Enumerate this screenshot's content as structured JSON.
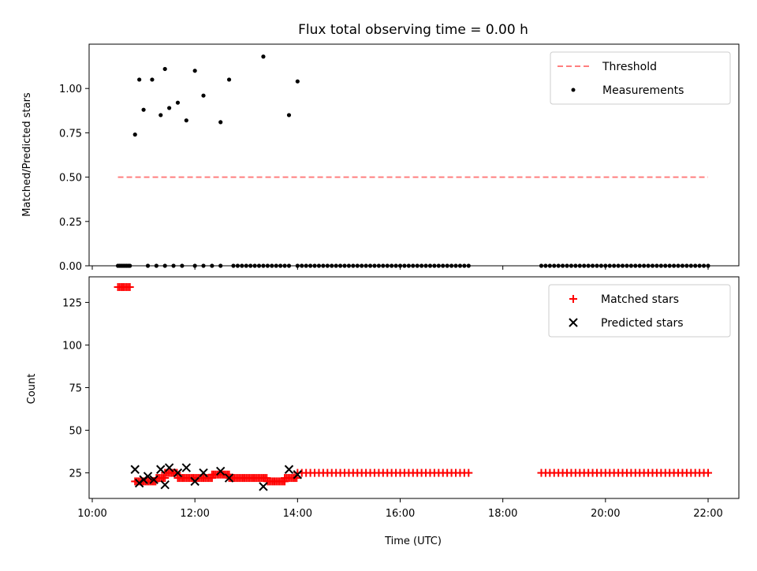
{
  "chart_data": [
    {
      "type": "scatter",
      "title": "Flux total observing time = 0.00 h",
      "xlabel": "",
      "ylabel": "Matched/Predicted stars",
      "xlim": [
        "10:00",
        "22:00"
      ],
      "ylim": [
        0,
        1.25
      ],
      "yticks": [
        "0.00",
        "0.25",
        "0.50",
        "0.75",
        "1.00"
      ],
      "grid": false,
      "legend_position": "top-right",
      "threshold": {
        "name": "Threshold",
        "value": 0.5,
        "x_start": "10:30",
        "x_end": "22:00",
        "color": "#ff7f7f",
        "style": "dashed"
      },
      "series": [
        {
          "name": "Measurements",
          "color": "#000000",
          "marker": "dot",
          "points": [
            {
              "x": "10:50",
              "y": 0.74
            },
            {
              "x": "10:55",
              "y": 1.05
            },
            {
              "x": "11:00",
              "y": 0.88
            },
            {
              "x": "11:10",
              "y": 1.05
            },
            {
              "x": "11:20",
              "y": 0.85
            },
            {
              "x": "11:25",
              "y": 1.11
            },
            {
              "x": "11:30",
              "y": 0.89
            },
            {
              "x": "11:40",
              "y": 0.92
            },
            {
              "x": "11:50",
              "y": 0.82
            },
            {
              "x": "12:00",
              "y": 1.1
            },
            {
              "x": "12:10",
              "y": 0.96
            },
            {
              "x": "12:30",
              "y": 0.81
            },
            {
              "x": "12:40",
              "y": 1.05
            },
            {
              "x": "13:20",
              "y": 1.18
            },
            {
              "x": "13:50",
              "y": 0.85
            },
            {
              "x": "14:00",
              "y": 1.04
            }
          ],
          "zero_ranges": [
            {
              "from": "10:30",
              "to": "10:45",
              "step": 2
            },
            {
              "from": "11:05",
              "to": "11:50",
              "step": 10
            },
            {
              "from": "12:00",
              "to": "12:30",
              "step": 10
            },
            {
              "from": "12:45",
              "to": "13:50",
              "step": 5
            },
            {
              "from": "14:00",
              "to": "17:20",
              "step": 5
            },
            {
              "from": "18:45",
              "to": "22:00",
              "step": 5
            }
          ]
        }
      ]
    },
    {
      "type": "scatter",
      "title": "",
      "xlabel": "Time (UTC)",
      "ylabel": "Count",
      "xlim": [
        "10:00",
        "22:00"
      ],
      "xticks": [
        "10:00",
        "12:00",
        "14:00",
        "16:00",
        "18:00",
        "20:00",
        "22:00"
      ],
      "ylim": [
        10,
        140
      ],
      "yticks": [
        "25",
        "50",
        "75",
        "100",
        "125"
      ],
      "grid": false,
      "legend_position": "top-right",
      "series": [
        {
          "name": "Matched stars",
          "color": "#ff0000",
          "marker": "plus",
          "segments": [
            {
              "from": "10:30",
              "to": "10:45",
              "step": 2,
              "value": 134
            },
            {
              "from": "10:50",
              "to": "11:15",
              "step": 2,
              "value": 20
            },
            {
              "from": "11:15",
              "to": "11:25",
              "step": 2,
              "value": 22
            },
            {
              "from": "11:25",
              "to": "11:40",
              "step": 2,
              "value": 25
            },
            {
              "from": "11:40",
              "to": "12:20",
              "step": 2,
              "value": 22
            },
            {
              "from": "12:20",
              "to": "12:40",
              "step": 2,
              "value": 24
            },
            {
              "from": "12:40",
              "to": "13:25",
              "step": 2,
              "value": 22
            },
            {
              "from": "13:25",
              "to": "13:45",
              "step": 2,
              "value": 20
            },
            {
              "from": "13:45",
              "to": "14:00",
              "step": 2,
              "value": 22
            },
            {
              "from": "14:00",
              "to": "17:20",
              "step": 5,
              "value": 25
            },
            {
              "from": "18:45",
              "to": "22:00",
              "step": 5,
              "value": 25
            }
          ]
        },
        {
          "name": "Predicted stars",
          "color": "#000000",
          "marker": "x",
          "points": [
            {
              "x": "10:50",
              "y": 27
            },
            {
              "x": "10:55",
              "y": 19
            },
            {
              "x": "11:00",
              "y": 21
            },
            {
              "x": "11:05",
              "y": 23
            },
            {
              "x": "11:12",
              "y": 21
            },
            {
              "x": "11:20",
              "y": 27
            },
            {
              "x": "11:25",
              "y": 18
            },
            {
              "x": "11:30",
              "y": 28
            },
            {
              "x": "11:40",
              "y": 25
            },
            {
              "x": "11:50",
              "y": 28
            },
            {
              "x": "12:00",
              "y": 20
            },
            {
              "x": "12:10",
              "y": 25
            },
            {
              "x": "12:30",
              "y": 26
            },
            {
              "x": "12:40",
              "y": 22
            },
            {
              "x": "13:20",
              "y": 17
            },
            {
              "x": "13:50",
              "y": 27
            },
            {
              "x": "14:00",
              "y": 24
            }
          ]
        }
      ]
    }
  ]
}
